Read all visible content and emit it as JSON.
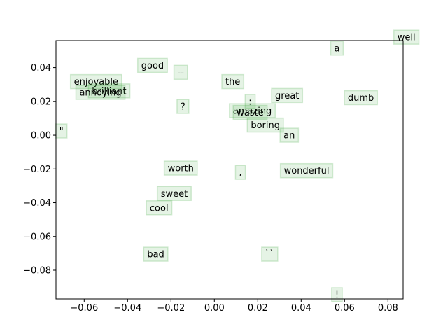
{
  "chart_data": {
    "type": "scatter",
    "title": "",
    "xlabel": "",
    "ylabel": "",
    "xlim": [
      -0.073,
      0.087
    ],
    "ylim": [
      -0.097,
      0.056
    ],
    "grid": false,
    "xticks": [
      -0.06,
      -0.04,
      -0.02,
      0.0,
      0.02,
      0.04,
      0.06,
      0.08
    ],
    "xtick_labels": [
      "−0.06",
      "−0.04",
      "−0.02",
      "0.00",
      "0.02",
      "0.04",
      "0.06",
      "0.08"
    ],
    "yticks": [
      -0.08,
      -0.06,
      -0.04,
      -0.02,
      0.0,
      0.02,
      0.04
    ],
    "ytick_labels": [
      "−0.08",
      "−0.06",
      "−0.04",
      "−0.02",
      "0.00",
      "0.02",
      "0.04"
    ],
    "marker_color": "#2ca02c",
    "points": [
      {
        "label": "well",
        "x": 0.0885,
        "y": 0.058
      },
      {
        "label": "a",
        "x": 0.0565,
        "y": 0.0515
      },
      {
        "label": "good",
        "x": -0.0285,
        "y": 0.0413
      },
      {
        "label": "--",
        "x": -0.0155,
        "y": 0.0372
      },
      {
        "label": "enjoyable",
        "x": -0.0545,
        "y": 0.0317
      },
      {
        "label": "the",
        "x": 0.0085,
        "y": 0.0317
      },
      {
        "label": "brilliant",
        "x": -0.0485,
        "y": 0.0262
      },
      {
        "label": "annoying",
        "x": -0.0525,
        "y": 0.0253
      },
      {
        "label": "great",
        "x": 0.0335,
        "y": 0.0235
      },
      {
        "label": "dumb",
        "x": 0.0675,
        "y": 0.0222
      },
      {
        "label": "?",
        "x": -0.0145,
        "y": 0.017
      },
      {
        "label": ":",
        "x": 0.0165,
        "y": 0.02
      },
      {
        "label": "amazing",
        "x": 0.0175,
        "y": 0.0145
      },
      {
        "label": "waste",
        "x": 0.0165,
        "y": 0.0135
      },
      {
        "label": "boring",
        "x": 0.0235,
        "y": 0.006
      },
      {
        "label": "an",
        "x": 0.0345,
        "y": 0.0
      },
      {
        "label": "\"",
        "x": -0.0705,
        "y": 0.0025
      },
      {
        "label": "worth",
        "x": -0.0155,
        "y": -0.0195
      },
      {
        "label": ",",
        "x": 0.012,
        "y": -0.022
      },
      {
        "label": "wonderful",
        "x": 0.0425,
        "y": -0.021
      },
      {
        "label": "sweet",
        "x": -0.0185,
        "y": -0.0345
      },
      {
        "label": "cool",
        "x": -0.0255,
        "y": -0.043
      },
      {
        "label": "bad",
        "x": -0.027,
        "y": -0.0705
      },
      {
        "label": "``",
        "x": 0.0255,
        "y": -0.0705
      },
      {
        "label": "!",
        "x": 0.0565,
        "y": -0.0945
      }
    ]
  }
}
